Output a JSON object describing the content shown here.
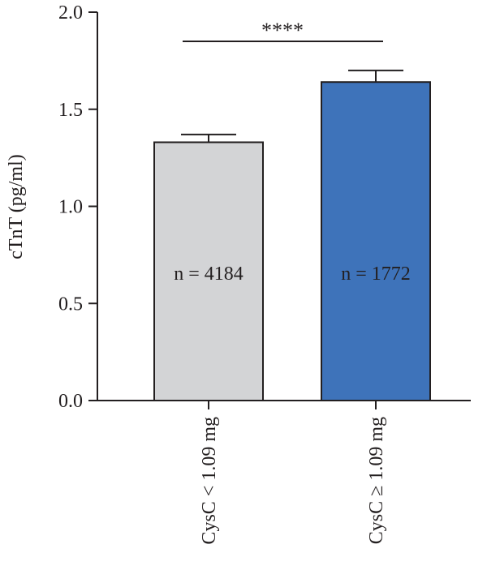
{
  "chart_data": {
    "type": "bar",
    "title": "",
    "xlabel": "",
    "ylabel": "cTnT (pg/ml)",
    "ylim": [
      0,
      2.0
    ],
    "yticks": [
      "0.0",
      "0.5",
      "1.0",
      "1.5",
      "2.0"
    ],
    "ytick_values": [
      0,
      0.5,
      1.0,
      1.5,
      2.0
    ],
    "categories": [
      "CysC < 1.09 mg",
      "CysC ≥ 1.09 mg"
    ],
    "values": [
      1.33,
      1.64
    ],
    "errors": [
      0.04,
      0.06
    ],
    "bar_labels": [
      "n = 4184",
      "n = 1772"
    ],
    "colors": [
      "#d3d4d6",
      "#3e73ba"
    ],
    "significance": {
      "label": "****",
      "between": [
        0,
        1
      ]
    },
    "grid": false,
    "legend": "none"
  }
}
